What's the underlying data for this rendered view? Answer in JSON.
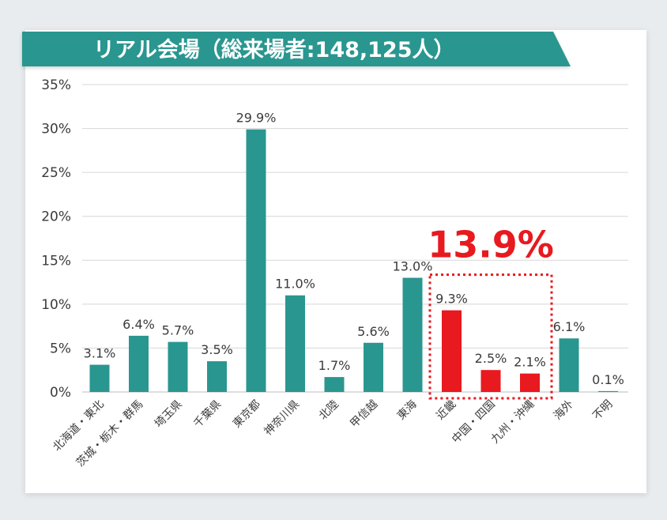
{
  "header": {
    "title": "リアル会場（総来場者:148,125人）"
  },
  "callout": {
    "text": "13.9%"
  },
  "colors": {
    "teal": "#2a9690",
    "red": "#e8191f",
    "grid": "#d7d7d7",
    "text": "#3b3b3b"
  },
  "chart_data": {
    "type": "bar",
    "title": "リアル会場（総来場者:148,125人）",
    "xlabel": "",
    "ylabel": "",
    "ylim": [
      0,
      35
    ],
    "yticks": [
      "0%",
      "5%",
      "10%",
      "15%",
      "20%",
      "25%",
      "30%",
      "35%"
    ],
    "grid": true,
    "categories": [
      "北海道・東北",
      "茨城・栃木・群馬",
      "埼玉県",
      "千葉県",
      "東京都",
      "神奈川県",
      "北陸",
      "甲信越",
      "東海",
      "近畿",
      "中国・四国",
      "九州・沖縄",
      "海外",
      "不明"
    ],
    "values": [
      3.1,
      6.4,
      5.7,
      3.5,
      29.9,
      11.0,
      1.7,
      5.6,
      13.0,
      9.3,
      2.5,
      2.1,
      6.1,
      0.1
    ],
    "value_labels": [
      "3.1%",
      "6.4%",
      "5.7%",
      "3.5%",
      "29.9%",
      "11.0%",
      "1.7%",
      "5.6%",
      "13.0%",
      "9.3%",
      "2.5%",
      "2.1%",
      "6.1%",
      "0.1%"
    ],
    "highlighted": [
      false,
      false,
      false,
      false,
      false,
      false,
      false,
      false,
      false,
      true,
      true,
      true,
      false,
      false
    ],
    "annotation": {
      "text": "13.9%",
      "group": [
        "近畿",
        "中国・四国",
        "九州・沖縄"
      ]
    }
  }
}
